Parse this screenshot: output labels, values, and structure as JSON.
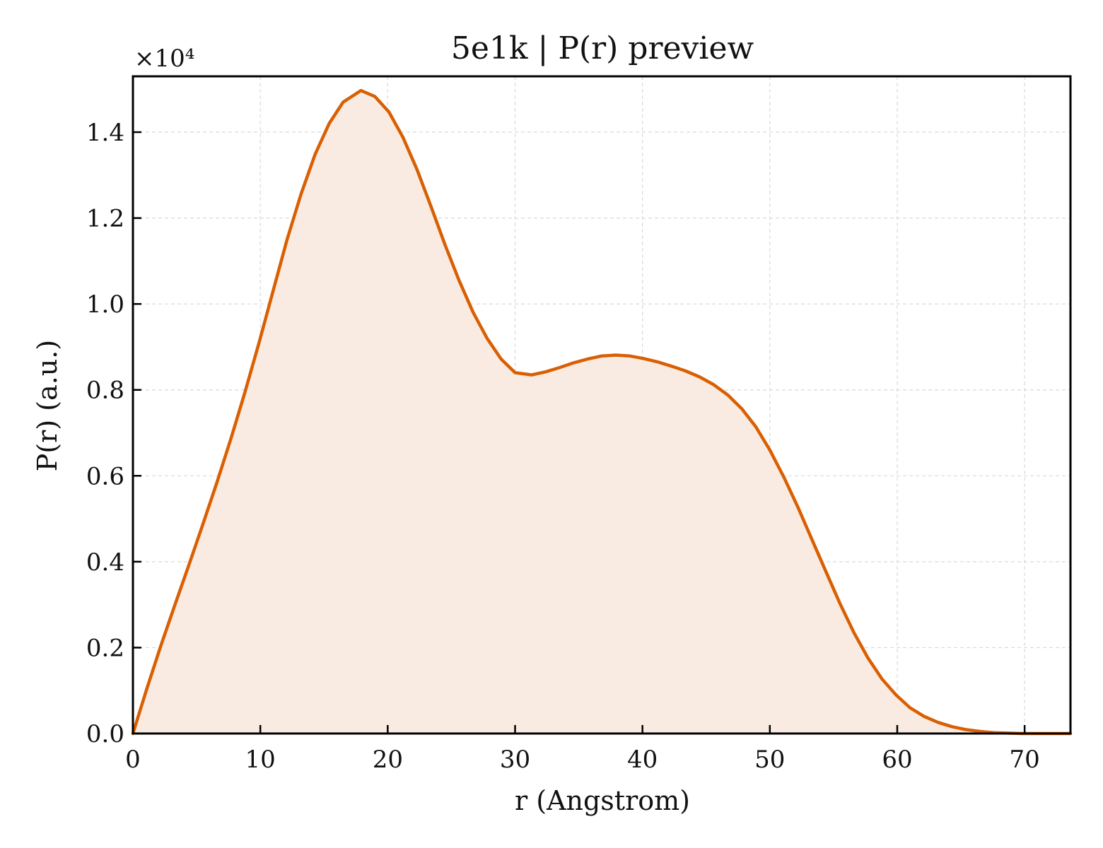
{
  "chart_data": {
    "type": "area",
    "title": "5e1k | P(r) preview",
    "xlabel": "r (Angstrom)",
    "ylabel": "P(r) (a.u.)",
    "y_multiplier_label": "×10⁴",
    "xlim": [
      0,
      73.6
    ],
    "ylim": [
      0,
      1.53
    ],
    "xticks": [
      "0",
      "10",
      "20",
      "30",
      "40",
      "50",
      "60",
      "70"
    ],
    "yticks": [
      "0.0",
      "0.2",
      "0.4",
      "0.6",
      "0.8",
      "1.0",
      "1.2",
      "1.4"
    ],
    "grid": true,
    "line_color": "#d95f02",
    "fill_color": "#f9ebe1",
    "series": [
      {
        "x": [
          0,
          1.1,
          2.2,
          3.3,
          4.4,
          5.5,
          6.6,
          7.7,
          8.8,
          9.9,
          11.0,
          12.1,
          13.2,
          14.3,
          15.4,
          16.5,
          17.9,
          19.0,
          20.1,
          21.2,
          22.3,
          23.4,
          24.5,
          25.6,
          26.7,
          27.8,
          28.9,
          30.0,
          31.3,
          32.4,
          33.5,
          34.6,
          35.7,
          36.8,
          37.9,
          39.0,
          40.1,
          41.2,
          42.3,
          43.4,
          44.5,
          45.6,
          46.7,
          47.8,
          48.9,
          50.0,
          51.1,
          52.2,
          53.3,
          54.4,
          55.5,
          56.6,
          57.7,
          58.8,
          59.9,
          61.0,
          62.1,
          63.2,
          64.3,
          65.4,
          66.5,
          67.6,
          68.7,
          69.8,
          70.9,
          72.0,
          73.6
        ],
        "y": [
          0.0,
          0.105,
          0.205,
          0.3,
          0.393,
          0.488,
          0.585,
          0.687,
          0.795,
          0.91,
          1.03,
          1.15,
          1.256,
          1.348,
          1.42,
          1.47,
          1.497,
          1.483,
          1.447,
          1.388,
          1.313,
          1.227,
          1.138,
          1.055,
          0.981,
          0.92,
          0.872,
          0.84,
          0.835,
          0.842,
          0.852,
          0.863,
          0.872,
          0.879,
          0.881,
          0.879,
          0.873,
          0.865,
          0.855,
          0.844,
          0.83,
          0.812,
          0.788,
          0.756,
          0.714,
          0.66,
          0.597,
          0.527,
          0.452,
          0.377,
          0.303,
          0.235,
          0.176,
          0.127,
          0.09,
          0.06,
          0.04,
          0.026,
          0.016,
          0.009,
          0.005,
          0.002,
          0.001,
          0.0,
          0.0,
          0.0,
          0.0
        ]
      }
    ]
  }
}
